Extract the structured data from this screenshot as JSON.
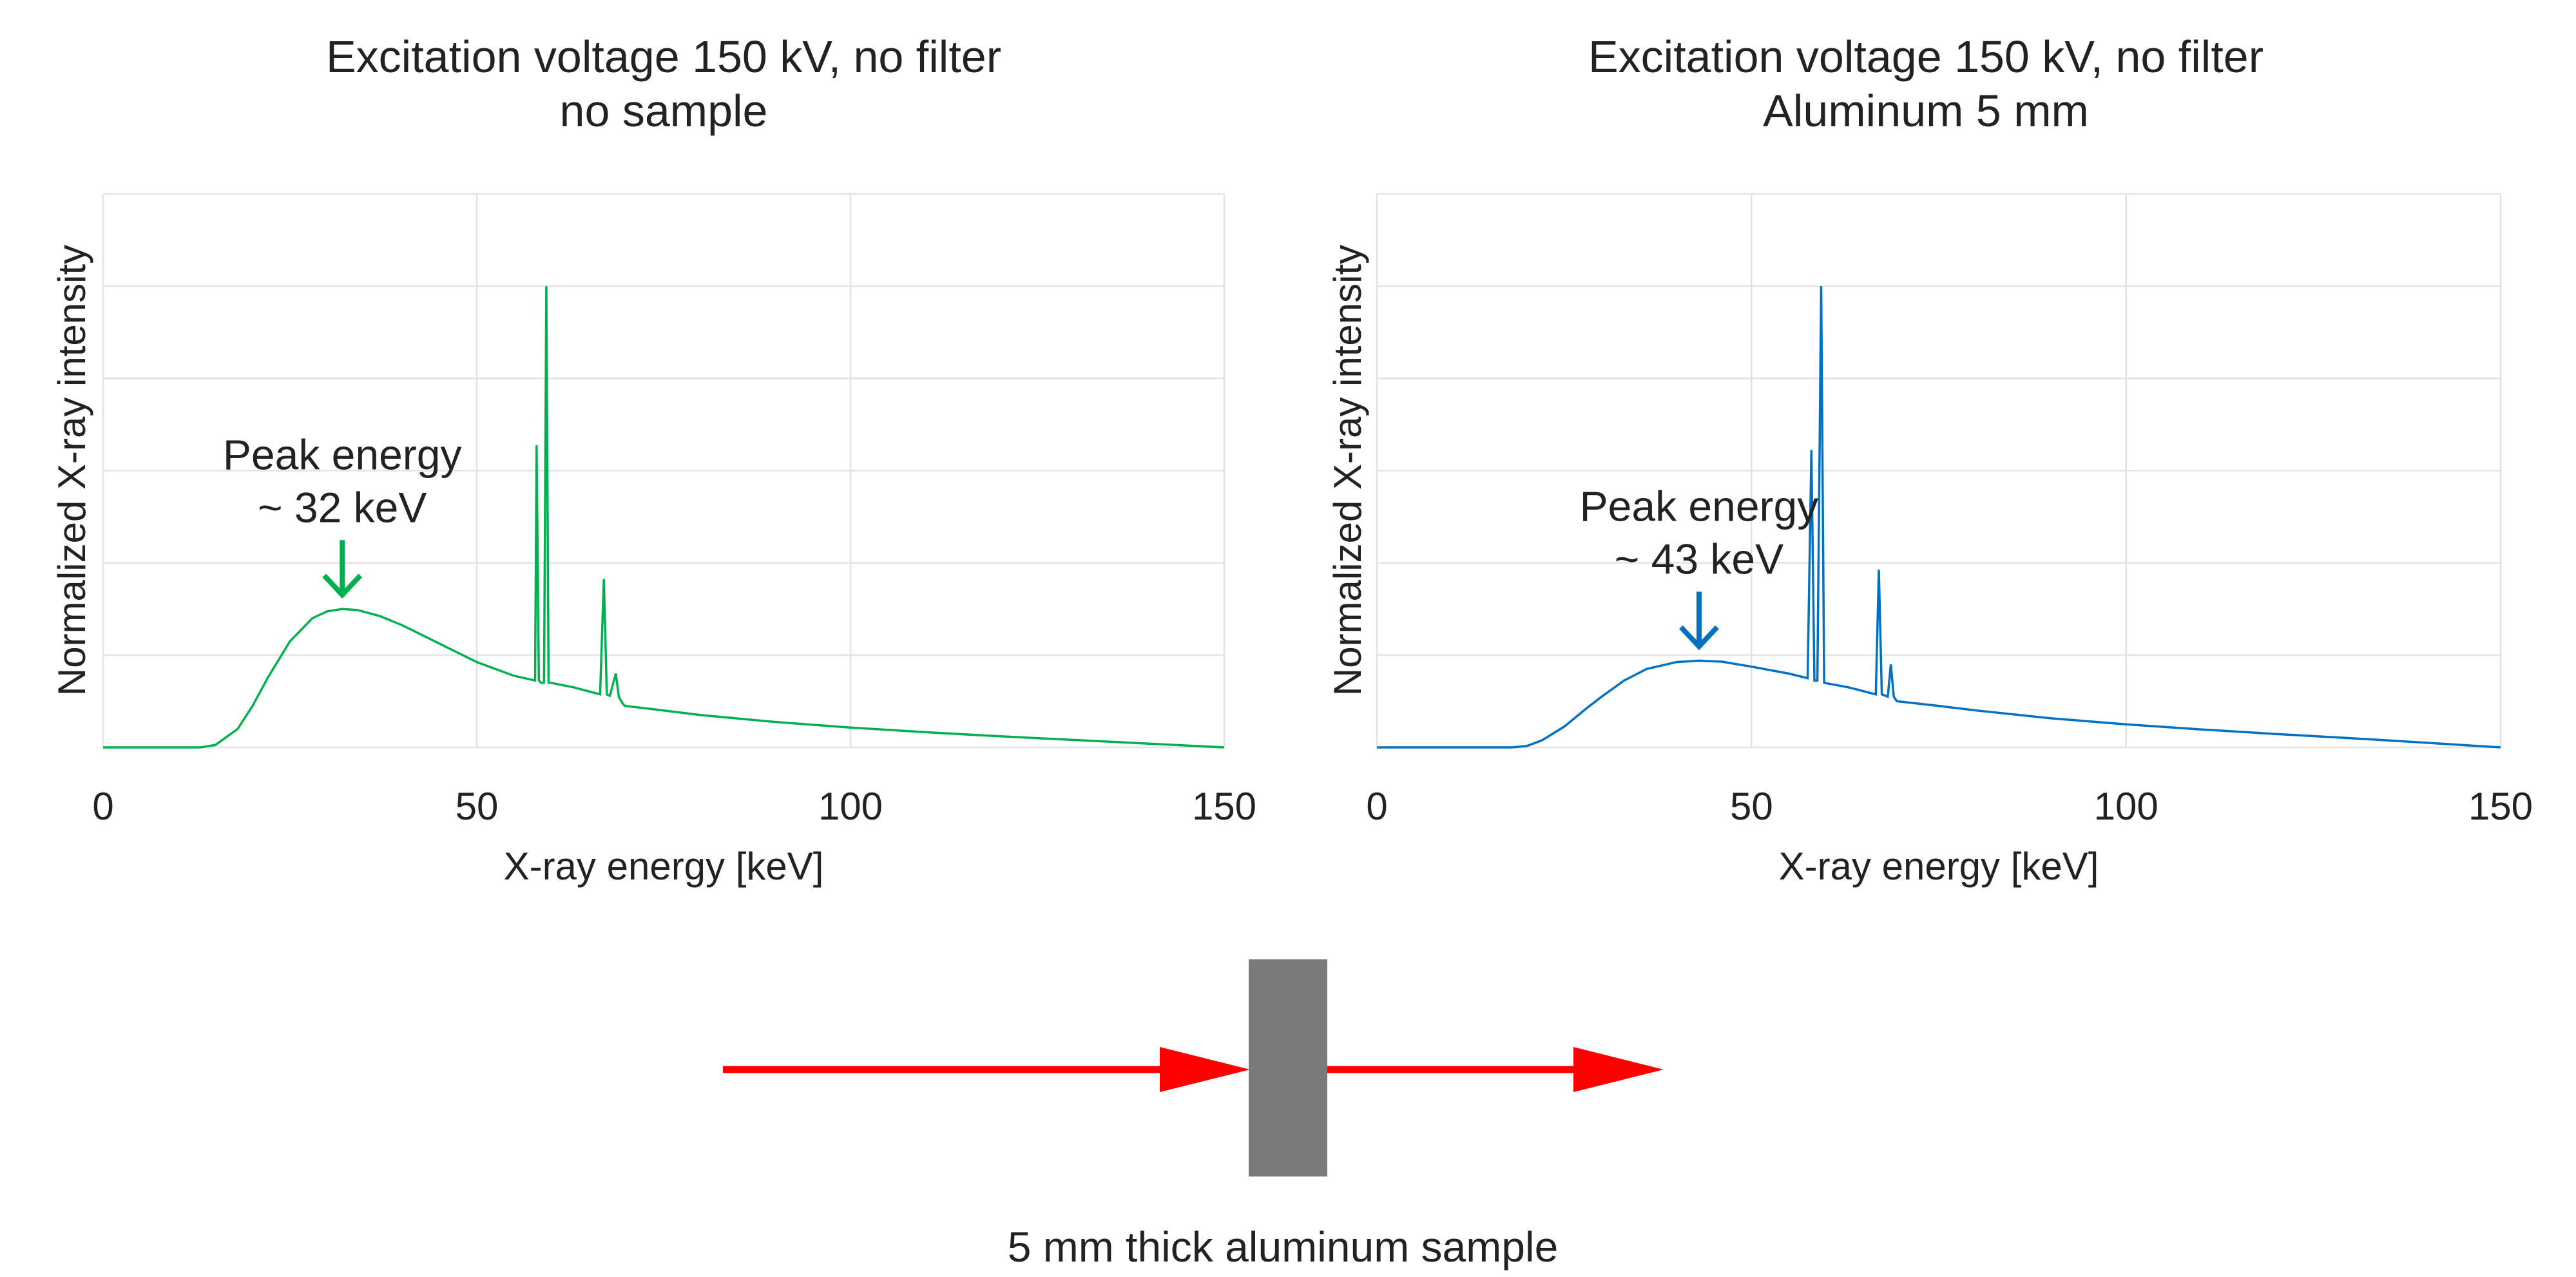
{
  "chart_data": [
    {
      "type": "line",
      "title": [
        "Excitation voltage 150 kV, no filter",
        "no sample"
      ],
      "xlabel": "X-ray energy [keV]",
      "ylabel": "Normalized X-ray intensity",
      "xlim": [
        0,
        150
      ],
      "ylim": [
        0,
        1.2
      ],
      "xticks": [
        0,
        50,
        100,
        150
      ],
      "xtick_labels": [
        "0",
        "50",
        "100",
        "150"
      ],
      "yticks_shown": false,
      "grid": true,
      "color": "#00b050",
      "annotation": {
        "lines": [
          "Peak energy",
          "~ 32 keV"
        ],
        "x": 32
      },
      "series": [
        {
          "x": [
            0,
            13,
            15,
            18,
            20,
            22,
            25,
            28,
            30,
            32,
            34,
            37,
            40,
            45,
            50,
            55,
            57.8,
            58,
            58.3,
            58.6,
            59,
            59.3,
            59.6,
            59.9,
            63,
            66.5,
            67,
            67.4,
            67.8,
            68.6,
            69,
            69.4,
            69.8,
            75,
            80,
            90,
            100,
            110,
            120,
            130,
            140,
            150
          ],
          "y": [
            0,
            0,
            0.005,
            0.04,
            0.09,
            0.15,
            0.23,
            0.28,
            0.295,
            0.3,
            0.298,
            0.285,
            0.265,
            0.225,
            0.185,
            0.155,
            0.145,
            0.655,
            0.145,
            0.14,
            0.14,
            1.0,
            0.14,
            0.14,
            0.13,
            0.115,
            0.365,
            0.115,
            0.112,
            0.16,
            0.11,
            0.098,
            0.09,
            0.08,
            0.07,
            0.055,
            0.043,
            0.033,
            0.024,
            0.016,
            0.008,
            0
          ]
        }
      ]
    },
    {
      "type": "line",
      "title": [
        "Excitation voltage 150 kV, no filter",
        "Aluminum 5 mm"
      ],
      "xlabel": "X-ray energy [keV]",
      "ylabel": "Normalized X-ray intensity",
      "xlim": [
        0,
        150
      ],
      "ylim": [
        0,
        1.2
      ],
      "xticks": [
        0,
        50,
        100,
        150
      ],
      "xtick_labels": [
        "0",
        "50",
        "100",
        "150"
      ],
      "yticks_shown": false,
      "grid": true,
      "color": "#0070c0",
      "annotation": {
        "lines": [
          "Peak energy",
          "~ 43 keV"
        ],
        "x": 43
      },
      "series": [
        {
          "x": [
            0,
            18,
            20,
            22,
            25,
            28,
            30,
            33,
            36,
            40,
            43,
            46,
            50,
            55,
            57.5,
            58,
            58.4,
            58.8,
            59.3,
            59.7,
            63,
            66.6,
            67,
            67.4,
            68.2,
            68.6,
            69,
            69.4,
            75,
            80,
            90,
            100,
            110,
            120,
            130,
            140,
            150
          ],
          "y": [
            0,
            0,
            0.003,
            0.015,
            0.045,
            0.085,
            0.11,
            0.145,
            0.17,
            0.185,
            0.188,
            0.186,
            0.175,
            0.16,
            0.15,
            0.645,
            0.145,
            0.145,
            1.0,
            0.14,
            0.13,
            0.115,
            0.385,
            0.115,
            0.11,
            0.18,
            0.11,
            0.1,
            0.09,
            0.08,
            0.063,
            0.05,
            0.039,
            0.029,
            0.02,
            0.01,
            0
          ]
        }
      ]
    }
  ],
  "diagram": {
    "caption": "5 mm thick aluminum sample",
    "beam_color": "#ff0000",
    "sample_color": "#7a7a7a"
  }
}
